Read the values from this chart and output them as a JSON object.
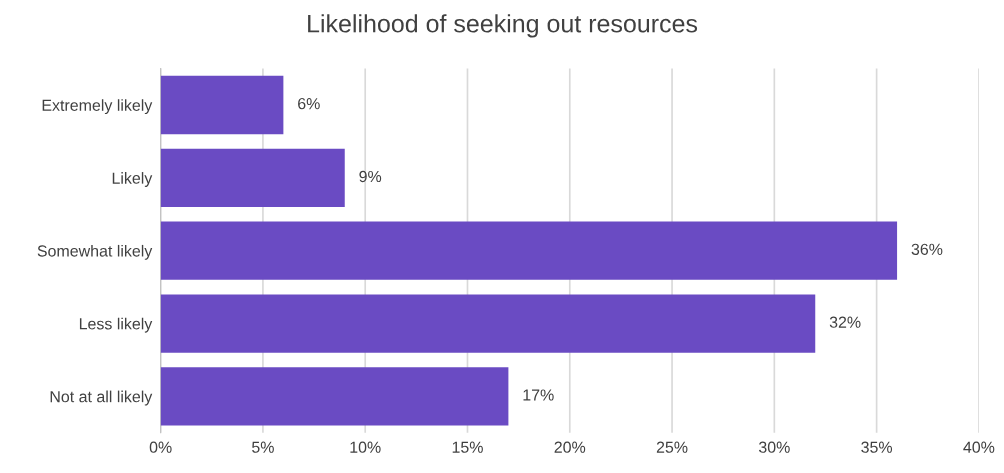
{
  "chart_data": {
    "type": "bar",
    "orientation": "horizontal",
    "title": "Likelihood of seeking out resources",
    "categories": [
      "Extremely likely",
      "Likely",
      "Somewhat likely",
      "Less likely",
      "Not at all likely"
    ],
    "values": [
      6,
      9,
      36,
      32,
      17
    ],
    "value_labels": [
      "6%",
      "9%",
      "36%",
      "32%",
      "17%"
    ],
    "color": "#6a4bc3",
    "xlim": [
      0,
      40
    ],
    "xticks": [
      {
        "value": 0,
        "label": "0%"
      },
      {
        "value": 5,
        "label": "5%"
      },
      {
        "value": 10,
        "label": "10%"
      },
      {
        "value": 15,
        "label": "15%"
      },
      {
        "value": 20,
        "label": "20%"
      },
      {
        "value": 25,
        "label": "25%"
      },
      {
        "value": 30,
        "label": "30%"
      },
      {
        "value": 35,
        "label": "35%"
      },
      {
        "value": 40,
        "label": "40%"
      }
    ],
    "grid": "x",
    "legend": false
  }
}
